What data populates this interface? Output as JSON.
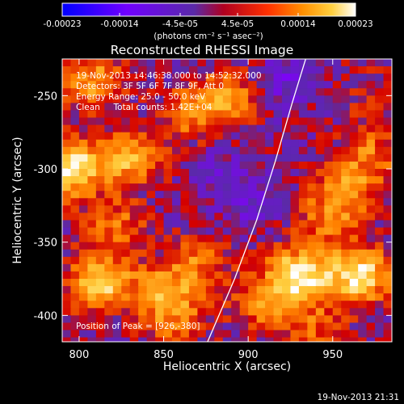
{
  "chart_data": {
    "type": "heatmap",
    "title": "Reconstructed RHESSI Image",
    "xlabel": "Heliocentric X (arcsec)",
    "ylabel": "Heliocentric Y (arcsec)",
    "xlim": [
      790,
      985
    ],
    "ylim": [
      -418,
      -225
    ],
    "x_ticks": [
      800,
      850,
      900,
      950
    ],
    "y_ticks": [
      -250,
      -300,
      -350,
      -400
    ],
    "colormap": [
      "#0000ff",
      "#8000ff",
      "#5a2aa8",
      "#d40000",
      "#ff8000",
      "#ffd040",
      "#ffffff"
    ],
    "colorbar": {
      "min": -0.00023,
      "max": 0.00023,
      "ticks": [
        "-0.00023",
        "-0.00014",
        "-4.5e-05",
        "4.5e-05",
        "0.00014",
        "0.00023"
      ],
      "unit_label": "(photons cm⁻² s⁻¹ asec⁻²)"
    },
    "annotations": [
      "19-Nov-2013 14:46:38.000 to 14:52:32.000",
      "Detectors: 3F 5F 6F 7F 8F 9F, Att 0",
      "Energy Range: 25.0 - 50.0 keV",
      "Clean     Total counts: 1.42E+04"
    ],
    "peak_label": "Position of Peak = [926,-380]",
    "peak_position": [
      926,
      -380
    ],
    "limb": [
      [
        876,
        -418
      ],
      [
        892,
        -375
      ],
      [
        905,
        -335
      ],
      [
        916,
        -295
      ],
      [
        926,
        -255
      ],
      [
        934,
        -225
      ]
    ],
    "hotspots": [
      {
        "x": 808,
        "y": -240,
        "value": 0.00014
      },
      {
        "x": 795,
        "y": -300,
        "value": 0.00023
      },
      {
        "x": 830,
        "y": -292,
        "value": 0.00016
      },
      {
        "x": 868,
        "y": -262,
        "value": 0.00012
      },
      {
        "x": 890,
        "y": -250,
        "value": 0.00011
      },
      {
        "x": 822,
        "y": -340,
        "value": 0.0001
      },
      {
        "x": 812,
        "y": -378,
        "value": 0.0002
      },
      {
        "x": 850,
        "y": -385,
        "value": 0.00014
      },
      {
        "x": 870,
        "y": -365,
        "value": 0.0001
      },
      {
        "x": 858,
        "y": -405,
        "value": 8e-05
      },
      {
        "x": 930,
        "y": -373,
        "value": 0.00023
      },
      {
        "x": 910,
        "y": -392,
        "value": 0.00011
      },
      {
        "x": 965,
        "y": -372,
        "value": 0.00022
      },
      {
        "x": 958,
        "y": -315,
        "value": 0.00012
      },
      {
        "x": 972,
        "y": -290,
        "value": 0.0001
      },
      {
        "x": 946,
        "y": -335,
        "value": 9e-05
      },
      {
        "x": 975,
        "y": -250,
        "value": 5e-05
      },
      {
        "x": 940,
        "y": -410,
        "value": 8e-05
      }
    ],
    "negative_regions": [
      {
        "x": 920,
        "y": -240,
        "value": -7e-05
      },
      {
        "x": 900,
        "y": -325,
        "value": -5e-05
      },
      {
        "x": 885,
        "y": -300,
        "value": -4e-05
      }
    ]
  },
  "footer_timestamp": "19-Nov-2013 21:31"
}
